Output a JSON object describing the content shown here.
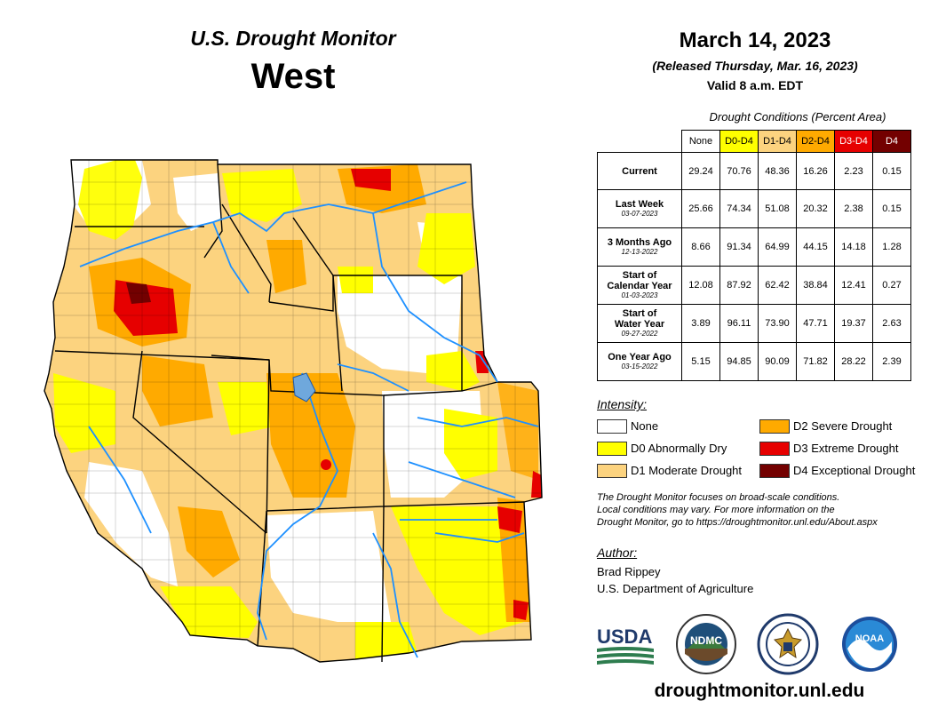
{
  "header": {
    "title": "U.S. Drought Monitor",
    "region": "West",
    "date": "March 14, 2023",
    "released": "(Released Thursday, Mar. 16, 2023)",
    "valid": "Valid 8 a.m. EDT"
  },
  "conditions": {
    "caption": "Drought Conditions (Percent Area)",
    "columns": [
      {
        "label": "None",
        "color": "#ffffff"
      },
      {
        "label": "D0-D4",
        "color": "#ffff00"
      },
      {
        "label": "D1-D4",
        "color": "#fcd37f"
      },
      {
        "label": "D2-D4",
        "color": "#ffaa00"
      },
      {
        "label": "D3-D4",
        "color": "#e60000",
        "text_color": "#ffffff"
      },
      {
        "label": "D4",
        "color": "#730000",
        "text_color": "#ffffff"
      }
    ],
    "rows": [
      {
        "label": [
          "Current"
        ],
        "date": "",
        "values": [
          "29.24",
          "70.76",
          "48.36",
          "16.26",
          "2.23",
          "0.15"
        ]
      },
      {
        "label": [
          "Last Week"
        ],
        "date": "03-07-2023",
        "values": [
          "25.66",
          "74.34",
          "51.08",
          "20.32",
          "2.38",
          "0.15"
        ]
      },
      {
        "label": [
          "3 Months Ago"
        ],
        "date": "12-13-2022",
        "values": [
          "8.66",
          "91.34",
          "64.99",
          "44.15",
          "14.18",
          "1.28"
        ]
      },
      {
        "label": [
          "Start of",
          "Calendar Year"
        ],
        "date": "01-03-2023",
        "values": [
          "12.08",
          "87.92",
          "62.42",
          "38.84",
          "12.41",
          "0.27"
        ]
      },
      {
        "label": [
          "Start of",
          "Water Year"
        ],
        "date": "09-27-2022",
        "values": [
          "3.89",
          "96.11",
          "73.90",
          "47.71",
          "19.37",
          "2.63"
        ]
      },
      {
        "label": [
          "One Year Ago"
        ],
        "date": "03-15-2022",
        "values": [
          "5.15",
          "94.85",
          "90.09",
          "71.82",
          "28.22",
          "2.39"
        ]
      }
    ]
  },
  "legend": {
    "title": "Intensity:",
    "items": [
      {
        "label": "None",
        "color": "#ffffff"
      },
      {
        "label": "D0 Abnormally Dry",
        "color": "#ffff00"
      },
      {
        "label": "D1 Moderate Drought",
        "color": "#fcd37f"
      },
      {
        "label": "D2 Severe Drought",
        "color": "#ffaa00"
      },
      {
        "label": "D3 Extreme Drought",
        "color": "#e60000"
      },
      {
        "label": "D4 Exceptional Drought",
        "color": "#730000"
      }
    ]
  },
  "disclaimer": {
    "line1": "The Drought Monitor focuses on broad-scale conditions.",
    "line2": "Local conditions may vary. For more information on the",
    "line3": "Drought Monitor, go to https://droughtmonitor.unl.edu/About.aspx"
  },
  "author": {
    "title": "Author:",
    "name": "Brad Rippey",
    "org": "U.S. Department of Agriculture"
  },
  "logos": {
    "usda": "USDA",
    "ndmc": "NDMC",
    "noaa": "NOAA"
  },
  "website": "droughtmonitor.unl.edu"
}
